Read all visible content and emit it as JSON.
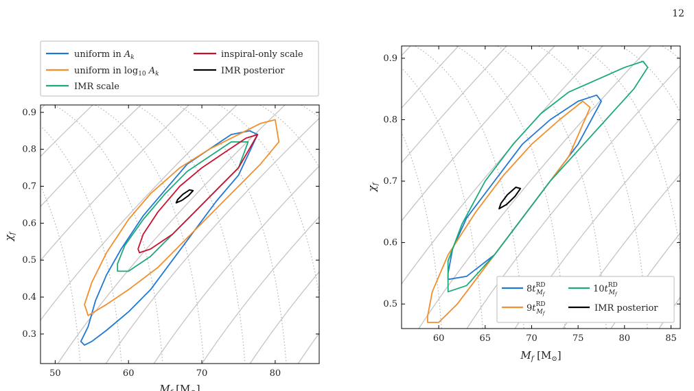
{
  "page_number": "12",
  "chart_data": [
    {
      "type": "contour",
      "xlabel": "M_f [M_⊙]",
      "ylabel": "χ_f",
      "xlim": [
        48,
        86
      ],
      "ylim": [
        0.22,
        0.92
      ],
      "xticks": [
        50,
        60,
        70,
        80
      ],
      "yticks": [
        0.3,
        0.4,
        0.5,
        0.6,
        0.7,
        0.8,
        0.9
      ],
      "grid": false,
      "legend_position": "above",
      "legend": [
        {
          "label": "uniform in A_k",
          "color": "#1f77d4"
        },
        {
          "label": "uniform in log₁₀ A_k",
          "color": "#f28e2b"
        },
        {
          "label": "IMR scale",
          "color": "#1aaa7a"
        },
        {
          "label": "inspiral-only scale",
          "color": "#c8102e"
        },
        {
          "label": "IMR posterior",
          "color": "#000000"
        }
      ],
      "series": [
        {
          "name": "uniform in A_k",
          "color": "#1f77d4",
          "points": [
            [
              54,
              0.27
            ],
            [
              55,
              0.28
            ],
            [
              57,
              0.31
            ],
            [
              60,
              0.36
            ],
            [
              63,
              0.42
            ],
            [
              66,
              0.5
            ],
            [
              69,
              0.58
            ],
            [
              72,
              0.66
            ],
            [
              75,
              0.73
            ],
            [
              77.6,
              0.84
            ],
            [
              76.5,
              0.85
            ],
            [
              74,
              0.84
            ],
            [
              71,
              0.8
            ],
            [
              68,
              0.76
            ],
            [
              65,
              0.69
            ],
            [
              62,
              0.62
            ],
            [
              59,
              0.53
            ],
            [
              57,
              0.46
            ],
            [
              55.5,
              0.39
            ],
            [
              54.5,
              0.32
            ],
            [
              53.5,
              0.28
            ],
            [
              54,
              0.27
            ]
          ]
        },
        {
          "name": "uniform in log₁₀ A_k",
          "color": "#f28e2b",
          "points": [
            [
              54.5,
              0.35
            ],
            [
              57,
              0.38
            ],
            [
              60,
              0.42
            ],
            [
              64,
              0.48
            ],
            [
              68,
              0.56
            ],
            [
              72,
              0.64
            ],
            [
              75,
              0.7
            ],
            [
              78,
              0.76
            ],
            [
              80.5,
              0.82
            ],
            [
              80,
              0.88
            ],
            [
              78,
              0.87
            ],
            [
              75,
              0.84
            ],
            [
              71,
              0.8
            ],
            [
              67,
              0.75
            ],
            [
              63,
              0.68
            ],
            [
              60,
              0.61
            ],
            [
              57,
              0.52
            ],
            [
              55,
              0.44
            ],
            [
              54,
              0.38
            ],
            [
              54.5,
              0.35
            ]
          ]
        },
        {
          "name": "IMR scale",
          "color": "#1aaa7a",
          "points": [
            [
              58.5,
              0.47
            ],
            [
              60,
              0.47
            ],
            [
              63,
              0.51
            ],
            [
              66,
              0.57
            ],
            [
              69,
              0.63
            ],
            [
              72,
              0.69
            ],
            [
              75,
              0.75
            ],
            [
              76.3,
              0.82
            ],
            [
              74,
              0.82
            ],
            [
              71,
              0.78
            ],
            [
              68,
              0.74
            ],
            [
              65,
              0.68
            ],
            [
              62,
              0.61
            ],
            [
              59.5,
              0.54
            ],
            [
              58.5,
              0.49
            ],
            [
              58.5,
              0.47
            ]
          ]
        },
        {
          "name": "inspiral-only scale",
          "color": "#c8102e",
          "points": [
            [
              61.5,
              0.52
            ],
            [
              63,
              0.53
            ],
            [
              66,
              0.57
            ],
            [
              69,
              0.63
            ],
            [
              72,
              0.69
            ],
            [
              75,
              0.75
            ],
            [
              77.6,
              0.84
            ],
            [
              76,
              0.83
            ],
            [
              73,
              0.79
            ],
            [
              70,
              0.75
            ],
            [
              67,
              0.7
            ],
            [
              64,
              0.63
            ],
            [
              62,
              0.57
            ],
            [
              61.3,
              0.53
            ],
            [
              61.5,
              0.52
            ]
          ]
        },
        {
          "name": "IMR posterior",
          "color": "#000000",
          "points": [
            [
              66.5,
              0.655
            ],
            [
              67.3,
              0.662
            ],
            [
              68.2,
              0.675
            ],
            [
              68.8,
              0.688
            ],
            [
              68.3,
              0.69
            ],
            [
              67.4,
              0.678
            ],
            [
              66.7,
              0.664
            ],
            [
              66.5,
              0.655
            ]
          ]
        }
      ]
    },
    {
      "type": "contour",
      "xlabel": "M_f [M_⊙]",
      "ylabel": "χ_f",
      "xlim": [
        56,
        86
      ],
      "ylim": [
        0.46,
        0.92
      ],
      "xticks": [
        60,
        65,
        70,
        75,
        80,
        85
      ],
      "yticks": [
        0.5,
        0.6,
        0.7,
        0.8,
        0.9
      ],
      "grid": false,
      "legend_position": "lower-right",
      "legend": [
        {
          "label": "8t^RD_{M_f}",
          "color": "#1f77d4"
        },
        {
          "label": "9t^RD_{M_f}",
          "color": "#f28e2b"
        },
        {
          "label": "10t^RD_{M_f}",
          "color": "#1aaa7a"
        },
        {
          "label": "IMR posterior",
          "color": "#000000"
        }
      ],
      "series": [
        {
          "name": "8t^RD_{M_f}",
          "color": "#1f77d4",
          "points": [
            [
              61,
              0.54
            ],
            [
              63,
              0.545
            ],
            [
              66,
              0.58
            ],
            [
              69,
              0.64
            ],
            [
              72,
              0.7
            ],
            [
              75,
              0.76
            ],
            [
              77.5,
              0.83
            ],
            [
              77,
              0.84
            ],
            [
              75,
              0.83
            ],
            [
              72,
              0.8
            ],
            [
              69,
              0.76
            ],
            [
              66,
              0.7
            ],
            [
              63,
              0.64
            ],
            [
              61.5,
              0.59
            ],
            [
              61,
              0.55
            ],
            [
              61,
              0.54
            ]
          ]
        },
        {
          "name": "9t^RD_{M_f}",
          "color": "#f28e2b",
          "points": [
            [
              58.8,
              0.47
            ],
            [
              60,
              0.47
            ],
            [
              62,
              0.5
            ],
            [
              65,
              0.56
            ],
            [
              68,
              0.62
            ],
            [
              71,
              0.68
            ],
            [
              74,
              0.74
            ],
            [
              76.3,
              0.82
            ],
            [
              75.5,
              0.83
            ],
            [
              73,
              0.8
            ],
            [
              70,
              0.76
            ],
            [
              67,
              0.71
            ],
            [
              64,
              0.65
            ],
            [
              61,
              0.58
            ],
            [
              59.3,
              0.52
            ],
            [
              58.8,
              0.48
            ],
            [
              58.8,
              0.47
            ]
          ]
        },
        {
          "name": "10t^RD_{M_f}",
          "color": "#1aaa7a",
          "points": [
            [
              61,
              0.52
            ],
            [
              63,
              0.53
            ],
            [
              66,
              0.58
            ],
            [
              69,
              0.64
            ],
            [
              72,
              0.7
            ],
            [
              75,
              0.75
            ],
            [
              78,
              0.8
            ],
            [
              81,
              0.85
            ],
            [
              82.5,
              0.885
            ],
            [
              82,
              0.895
            ],
            [
              80,
              0.885
            ],
            [
              77,
              0.865
            ],
            [
              74,
              0.845
            ],
            [
              71,
              0.81
            ],
            [
              68,
              0.76
            ],
            [
              65,
              0.7
            ],
            [
              62.5,
              0.63
            ],
            [
              61,
              0.57
            ],
            [
              61,
              0.52
            ]
          ]
        },
        {
          "name": "IMR posterior",
          "color": "#000000",
          "points": [
            [
              66.5,
              0.655
            ],
            [
              67.3,
              0.662
            ],
            [
              68.2,
              0.675
            ],
            [
              68.8,
              0.688
            ],
            [
              68.3,
              0.69
            ],
            [
              67.4,
              0.678
            ],
            [
              66.7,
              0.664
            ],
            [
              66.5,
              0.655
            ]
          ]
        }
      ]
    }
  ]
}
